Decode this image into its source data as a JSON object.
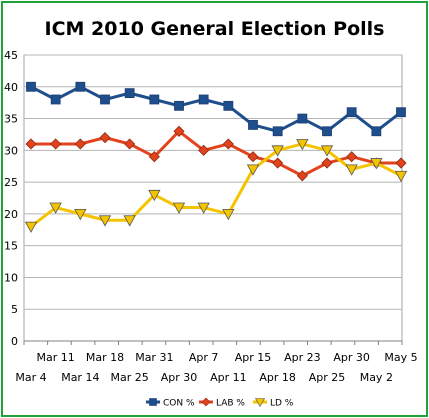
{
  "chart_data": {
    "type": "line",
    "title": "ICM 2010 General Election Polls",
    "xlabel": "",
    "ylabel": "",
    "ylim": [
      0,
      45
    ],
    "ytick_step": 5,
    "grid": true,
    "legend_position": "bottom",
    "categories_upper": [
      "Mar 11",
      "Mar 18",
      "Mar 31",
      "Apr 7",
      "Apr 15",
      "Apr 23",
      "Apr 30",
      "May 5"
    ],
    "categories_lower": [
      "Mar 4",
      "Mar 14",
      "Mar 25",
      "Apr 30",
      "Apr 11",
      "Apr 18",
      "Apr 25",
      "May 2"
    ],
    "series": [
      {
        "name": "CON %",
        "color": "#1f4e8c",
        "marker": "square",
        "values": [
          40,
          38,
          40,
          38,
          39,
          38,
          37,
          38,
          37,
          34,
          33,
          35,
          33,
          36,
          33,
          36
        ]
      },
      {
        "name": "LAB %",
        "color": "#e2431d",
        "marker": "diamond",
        "values": [
          31,
          31,
          31,
          32,
          31,
          29,
          33,
          30,
          31,
          29,
          28,
          26,
          28,
          29,
          28,
          28
        ]
      },
      {
        "name": "LD %",
        "color": "#f5c400",
        "marker": "triangle-down",
        "values": [
          18,
          21,
          20,
          19,
          19,
          23,
          21,
          21,
          20,
          27,
          30,
          31,
          30,
          27,
          28,
          26
        ]
      }
    ]
  }
}
